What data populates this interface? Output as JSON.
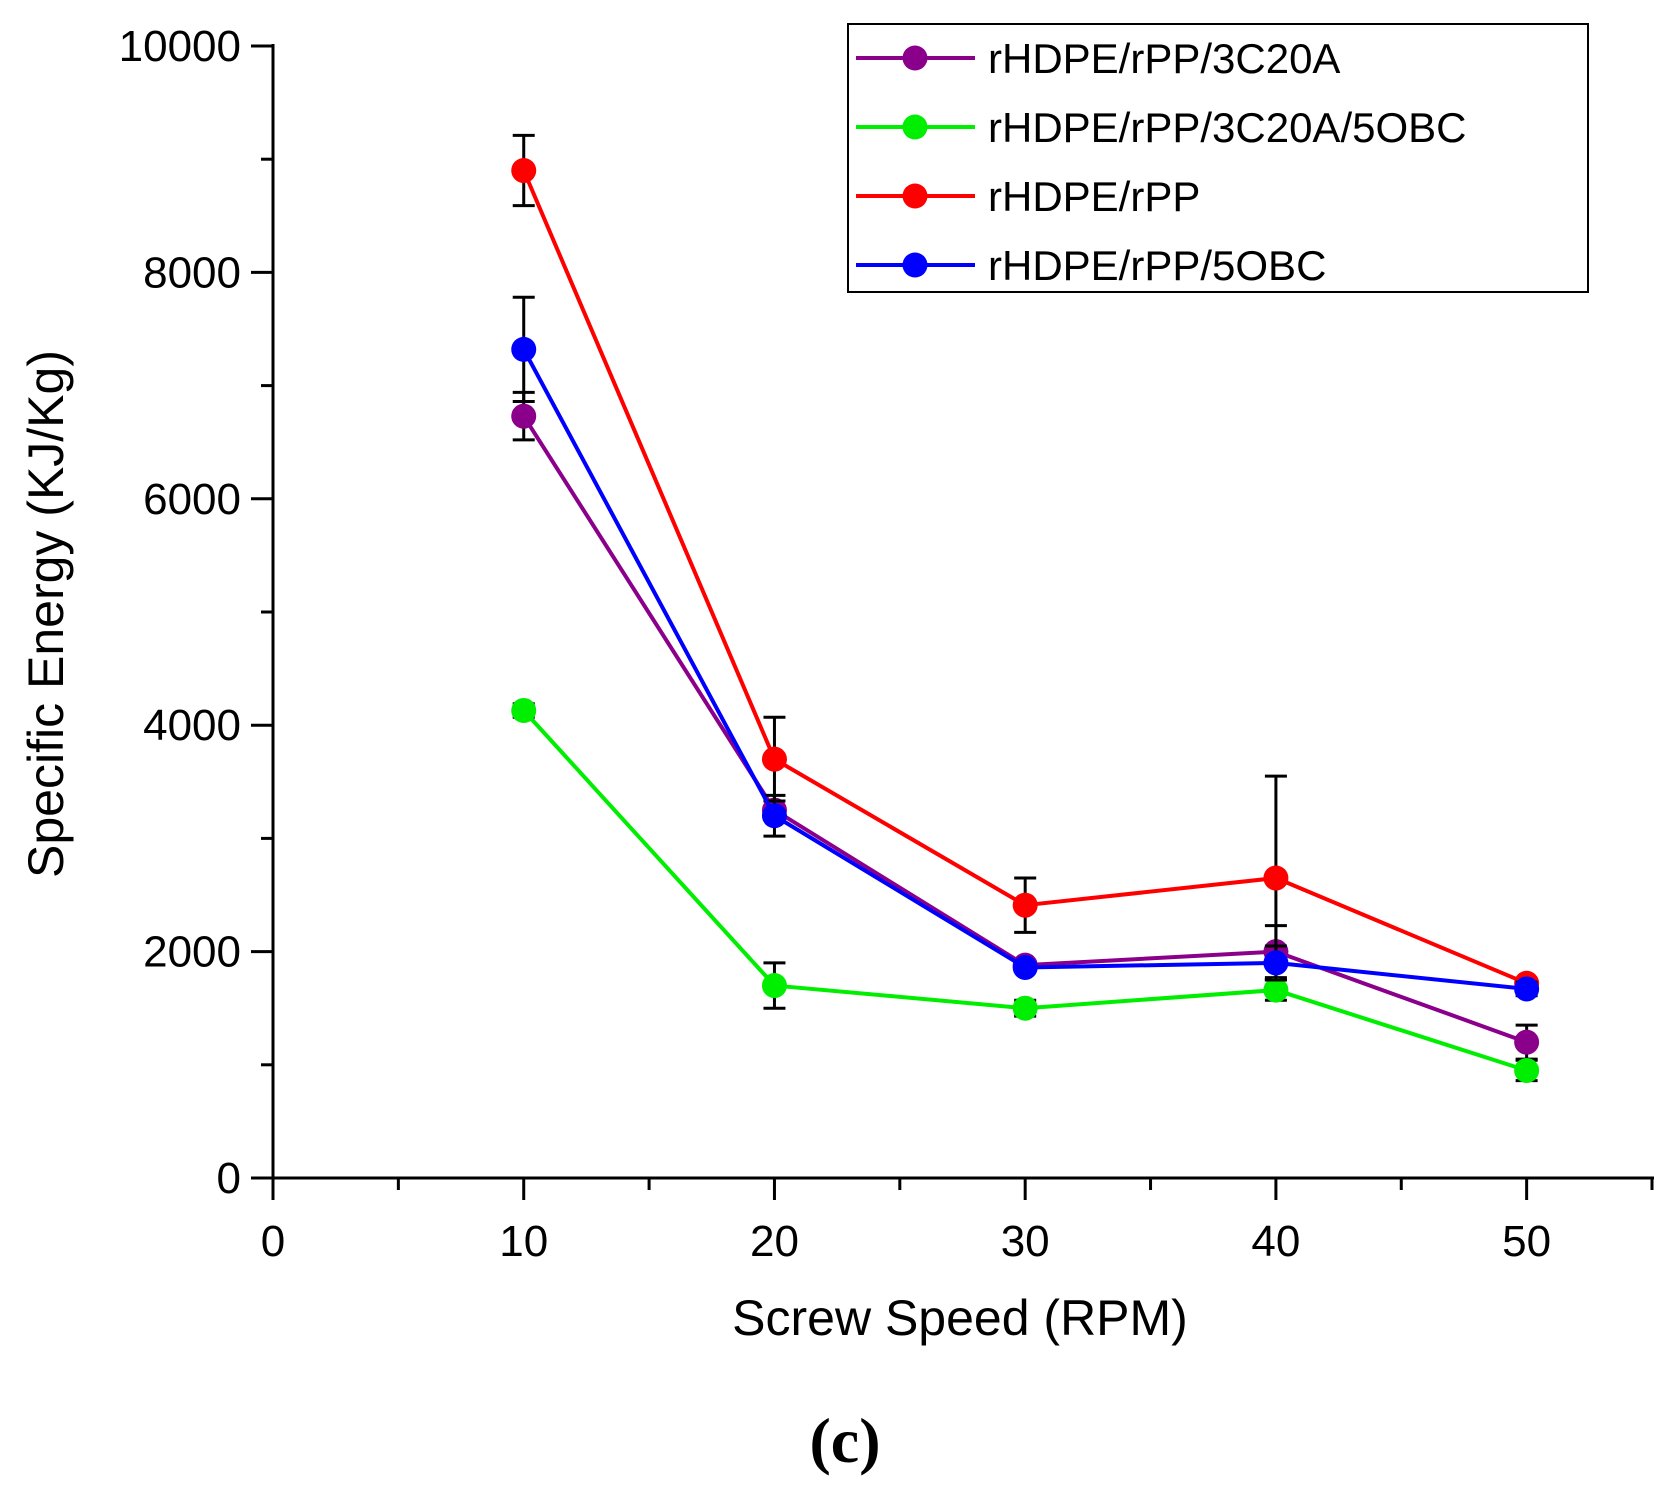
{
  "chart_data": {
    "type": "line",
    "title": "",
    "panel_label": "(c)",
    "xlabel": "Screw Speed (RPM)",
    "ylabel": "Specific Energy (KJ/Kg)",
    "xlim": [
      0,
      55
    ],
    "ylim": [
      0,
      10000
    ],
    "x_ticks": [
      0,
      10,
      20,
      30,
      40,
      50
    ],
    "x_tick_labels": [
      "0",
      "10",
      "20",
      "30",
      "40",
      "50"
    ],
    "x_minor_ticks": [
      5,
      15,
      25,
      35,
      45,
      55
    ],
    "y_ticks": [
      0,
      2000,
      4000,
      6000,
      8000,
      10000
    ],
    "y_tick_labels": [
      "0",
      "2000",
      "4000",
      "6000",
      "8000",
      "10000"
    ],
    "y_minor_ticks": [
      1000,
      3000,
      5000,
      7000,
      9000
    ],
    "grid": false,
    "legend_position": "top-right",
    "x": [
      10,
      20,
      30,
      40,
      50
    ],
    "series": [
      {
        "name": "rHDPE/rPP/3C20A",
        "color": "#8b008b",
        "values": [
          6730,
          3250,
          1880,
          2000,
          1200
        ],
        "errors": [
          210,
          0,
          0,
          230,
          150
        ]
      },
      {
        "name": "rHDPE/rPP/3C20A/5OBC",
        "color": "#00ee00",
        "values": [
          4130,
          1700,
          1500,
          1660,
          950
        ],
        "errors": [
          60,
          200,
          70,
          90,
          90
        ]
      },
      {
        "name": "rHDPE/rPP",
        "color": "#ff0000",
        "values": [
          8900,
          3700,
          2410,
          2650,
          1720
        ],
        "errors": [
          310,
          370,
          240,
          900,
          0
        ]
      },
      {
        "name": "rHDPE/rPP/5OBC",
        "color": "#0000ff",
        "values": [
          7320,
          3200,
          1860,
          1900,
          1670
        ],
        "errors": [
          460,
          180,
          0,
          150,
          60
        ]
      }
    ]
  }
}
